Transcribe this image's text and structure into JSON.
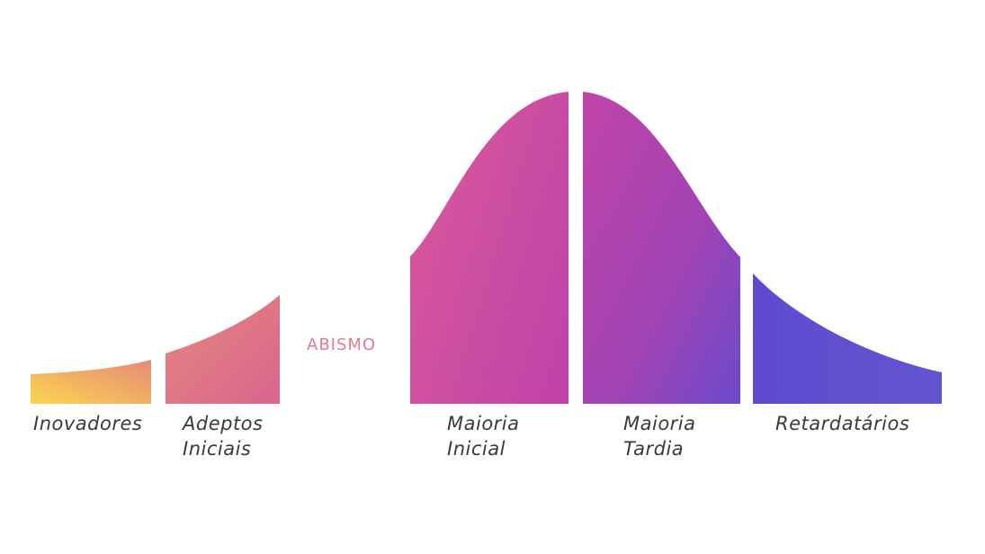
{
  "segments": [
    {
      "label": [
        "Inovadores"
      ]
    },
    {
      "label": [
        "Adeptos",
        "Iniciais"
      ]
    },
    {
      "label": [
        "Maioria",
        "Inicial"
      ]
    },
    {
      "label": [
        "Maioria",
        "Tardia"
      ]
    },
    {
      "label": [
        "Retardatários"
      ]
    }
  ],
  "chasm": {
    "label": "ABISMO",
    "color": "#e8798f"
  },
  "colors": {
    "yellow": "#fcd44e",
    "coral": "#e07a82",
    "pink": "#d24f9a",
    "magenta": "#c044a8",
    "purple": "#8e44b8",
    "indigo": "#5a4fcf"
  }
}
